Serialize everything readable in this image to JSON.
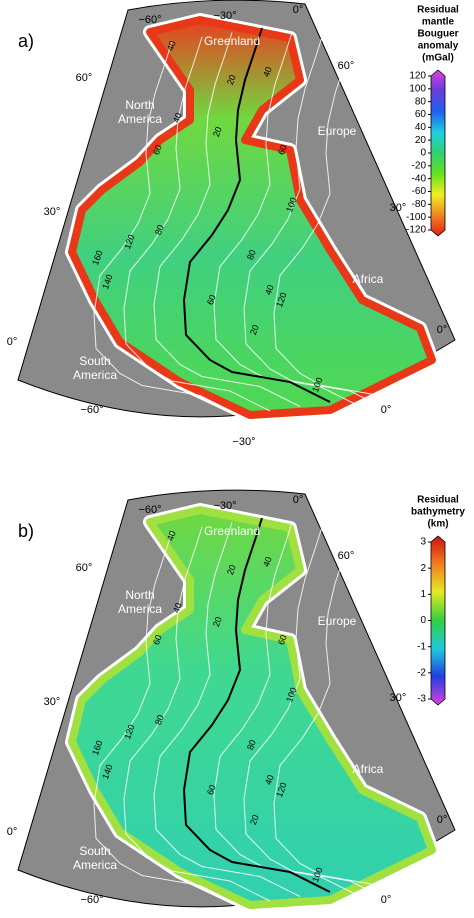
{
  "panels": [
    {
      "label": "a)",
      "graticule": {
        "top": [
          "−60°",
          "−30°",
          "0°"
        ],
        "left": [
          "60°",
          "30°",
          "0°"
        ],
        "right": [
          "60°",
          "30°",
          "0°"
        ],
        "bottom": [
          "−60°",
          "−30°",
          "0°"
        ]
      },
      "regions": [
        "Greenland",
        "North America",
        "Europe",
        "Africa",
        "South America"
      ],
      "isochron_labels": [
        40,
        20,
        40,
        40,
        60,
        20,
        60,
        100,
        80,
        40,
        20,
        160,
        140,
        120,
        80,
        60,
        120,
        100
      ],
      "colorbar": {
        "title": [
          "Residual",
          "mantle",
          "Bouguer",
          "anomaly",
          "(mGal)"
        ],
        "ticks": [
          120,
          100,
          80,
          60,
          40,
          20,
          0,
          -20,
          -40,
          -60,
          -80,
          -100,
          -120
        ]
      }
    },
    {
      "label": "b)",
      "graticule": {
        "top": [
          "−60°",
          "−30°",
          "0°"
        ],
        "left": [
          "60°",
          "30°",
          "0°"
        ],
        "right": [
          "60°",
          "30°",
          "0°"
        ],
        "bottom": [
          "−60°",
          "−30°",
          "0°"
        ]
      },
      "regions": [
        "Greenland",
        "North America",
        "Europe",
        "Africa",
        "South America"
      ],
      "isochron_labels": [
        40,
        20,
        40,
        40,
        60,
        20,
        60,
        100,
        80,
        40,
        20,
        160,
        140,
        120,
        80,
        60,
        120,
        100
      ],
      "colorbar": {
        "title": [
          "Residual",
          "bathymetry",
          "(km)"
        ],
        "ticks": [
          3,
          2,
          1,
          0,
          -1,
          -2,
          -3
        ]
      }
    }
  ]
}
